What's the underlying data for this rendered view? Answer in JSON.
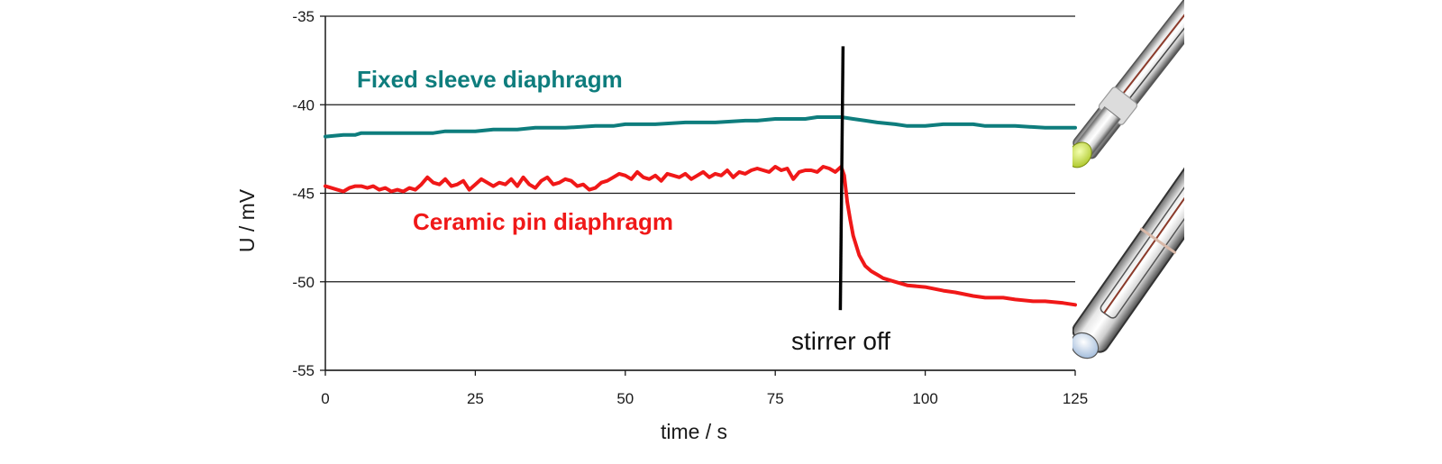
{
  "chart_data": {
    "type": "line",
    "title": "",
    "xlabel": "time / s",
    "ylabel": "U / mV",
    "xlim": [
      0,
      125
    ],
    "ylim": [
      -55,
      -35
    ],
    "x_ticks": [
      0,
      25,
      50,
      75,
      100,
      125
    ],
    "y_ticks": [
      -35,
      -40,
      -45,
      -50,
      -55
    ],
    "grid": "horizontal",
    "legend": "none",
    "series": [
      {
        "name": "Fixed sleeve diaphragm",
        "color": "#0e7d7d",
        "x": [
          0,
          3,
          5,
          6,
          10,
          15,
          18,
          20,
          25,
          28,
          30,
          32,
          35,
          40,
          45,
          48,
          50,
          55,
          60,
          65,
          70,
          72,
          75,
          78,
          80,
          82,
          84,
          86,
          88,
          90,
          92,
          95,
          97,
          100,
          103,
          105,
          108,
          110,
          115,
          120,
          125
        ],
        "y": [
          -41.8,
          -41.7,
          -41.7,
          -41.6,
          -41.6,
          -41.6,
          -41.6,
          -41.5,
          -41.5,
          -41.4,
          -41.4,
          -41.4,
          -41.3,
          -41.3,
          -41.2,
          -41.2,
          -41.1,
          -41.1,
          -41.0,
          -41.0,
          -40.9,
          -40.9,
          -40.8,
          -40.8,
          -40.8,
          -40.7,
          -40.7,
          -40.7,
          -40.8,
          -40.9,
          -41.0,
          -41.1,
          -41.2,
          -41.2,
          -41.1,
          -41.1,
          -41.1,
          -41.2,
          -41.2,
          -41.3,
          -41.3
        ]
      },
      {
        "name": "Ceramic pin diaphragm",
        "color": "#f01818",
        "x": [
          0,
          1,
          2,
          3,
          4,
          5,
          6,
          7,
          8,
          9,
          10,
          11,
          12,
          13,
          14,
          15,
          16,
          17,
          18,
          19,
          20,
          21,
          22,
          23,
          24,
          25,
          26,
          27,
          28,
          29,
          30,
          31,
          32,
          33,
          34,
          35,
          36,
          37,
          38,
          39,
          40,
          41,
          42,
          43,
          44,
          45,
          46,
          47,
          48,
          49,
          50,
          51,
          52,
          53,
          54,
          55,
          56,
          57,
          58,
          59,
          60,
          61,
          62,
          63,
          64,
          65,
          66,
          67,
          68,
          69,
          70,
          71,
          72,
          73,
          74,
          75,
          76,
          77,
          78,
          79,
          80,
          81,
          82,
          83,
          84,
          85,
          86,
          86.5,
          87,
          87.5,
          88,
          89,
          90,
          91,
          92,
          93,
          95,
          97,
          100,
          103,
          105,
          108,
          110,
          113,
          115,
          118,
          120,
          123,
          125
        ],
        "y": [
          -44.6,
          -44.7,
          -44.8,
          -44.9,
          -44.7,
          -44.6,
          -44.6,
          -44.7,
          -44.6,
          -44.8,
          -44.7,
          -44.9,
          -44.8,
          -44.9,
          -44.7,
          -44.8,
          -44.5,
          -44.1,
          -44.4,
          -44.5,
          -44.2,
          -44.6,
          -44.5,
          -44.3,
          -44.8,
          -44.5,
          -44.2,
          -44.4,
          -44.6,
          -44.4,
          -44.5,
          -44.2,
          -44.6,
          -44.1,
          -44.5,
          -44.7,
          -44.3,
          -44.1,
          -44.5,
          -44.4,
          -44.2,
          -44.3,
          -44.6,
          -44.5,
          -44.8,
          -44.7,
          -44.4,
          -44.3,
          -44.1,
          -43.9,
          -44.0,
          -44.2,
          -43.8,
          -44.1,
          -44.2,
          -44.0,
          -44.3,
          -43.9,
          -44.0,
          -44.1,
          -43.9,
          -44.2,
          -44.0,
          -43.8,
          -44.1,
          -43.9,
          -44.0,
          -43.7,
          -44.1,
          -43.8,
          -43.9,
          -43.7,
          -43.6,
          -43.7,
          -43.8,
          -43.5,
          -43.7,
          -43.6,
          -44.2,
          -43.8,
          -43.7,
          -43.7,
          -43.8,
          -43.5,
          -43.6,
          -43.8,
          -43.5,
          -44.0,
          -45.5,
          -46.5,
          -47.4,
          -48.5,
          -49.1,
          -49.4,
          -49.6,
          -49.8,
          -50.0,
          -50.2,
          -50.3,
          -50.5,
          -50.6,
          -50.8,
          -50.9,
          -50.9,
          -51.0,
          -51.1,
          -51.1,
          -51.2,
          -51.3
        ]
      }
    ],
    "labels": {
      "fixed": "Fixed sleeve diaphragm",
      "ceramic": "Ceramic pin diaphragm",
      "stirrer": "stirrer off"
    },
    "event_line": {
      "x": 86,
      "y_top": -36.7,
      "y_bottom": -51.6,
      "color": "#000000"
    }
  }
}
